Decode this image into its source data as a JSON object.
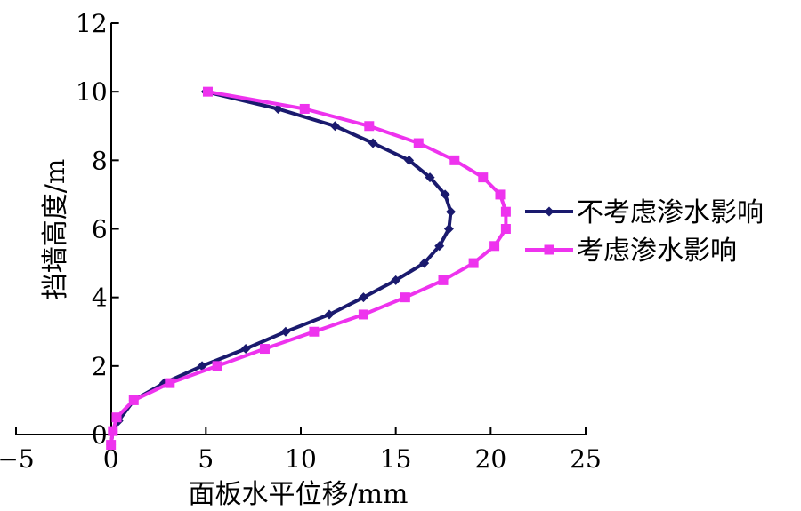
{
  "chart_data": {
    "type": "line",
    "xlabel": "面板水平位移/mm",
    "ylabel": "挡墙高度/m",
    "xlim": [
      -5,
      25
    ],
    "ylim": [
      0,
      12
    ],
    "x_ticks": [
      "−5",
      "0",
      "5",
      "10",
      "15",
      "20",
      "25"
    ],
    "y_ticks": [
      "0",
      "2",
      "4",
      "6",
      "8",
      "10",
      "12"
    ],
    "grid": false,
    "legend": "right",
    "series": [
      {
        "name": "不考虑渗水影响",
        "color": "#1a1a6e",
        "marker": "diamond",
        "points": [
          [
            0,
            -0.3
          ],
          [
            0.1,
            0.1
          ],
          [
            0.4,
            0.4
          ],
          [
            1.2,
            1.0
          ],
          [
            2.8,
            1.5
          ],
          [
            4.8,
            2.0
          ],
          [
            7.1,
            2.5
          ],
          [
            9.2,
            3.0
          ],
          [
            11.5,
            3.5
          ],
          [
            13.3,
            4.0
          ],
          [
            15.0,
            4.5
          ],
          [
            16.5,
            5.0
          ],
          [
            17.3,
            5.5
          ],
          [
            17.8,
            6.0
          ],
          [
            17.9,
            6.5
          ],
          [
            17.6,
            7.0
          ],
          [
            16.8,
            7.5
          ],
          [
            15.7,
            8.0
          ],
          [
            13.8,
            8.5
          ],
          [
            11.8,
            9.0
          ],
          [
            8.8,
            9.5
          ],
          [
            5.0,
            10.0
          ]
        ]
      },
      {
        "name": "考虑渗水影响",
        "color": "#ee33ee",
        "marker": "square",
        "points": [
          [
            0,
            -0.3
          ],
          [
            0.1,
            0.1
          ],
          [
            0.3,
            0.5
          ],
          [
            1.2,
            1.0
          ],
          [
            3.1,
            1.5
          ],
          [
            5.6,
            2.0
          ],
          [
            8.1,
            2.5
          ],
          [
            10.7,
            3.0
          ],
          [
            13.3,
            3.5
          ],
          [
            15.5,
            4.0
          ],
          [
            17.5,
            4.5
          ],
          [
            19.1,
            5.0
          ],
          [
            20.2,
            5.5
          ],
          [
            20.8,
            6.0
          ],
          [
            20.8,
            6.5
          ],
          [
            20.5,
            7.0
          ],
          [
            19.6,
            7.5
          ],
          [
            18.1,
            8.0
          ],
          [
            16.2,
            8.5
          ],
          [
            13.6,
            9.0
          ],
          [
            10.2,
            9.5
          ],
          [
            5.1,
            10.0
          ]
        ]
      }
    ]
  }
}
